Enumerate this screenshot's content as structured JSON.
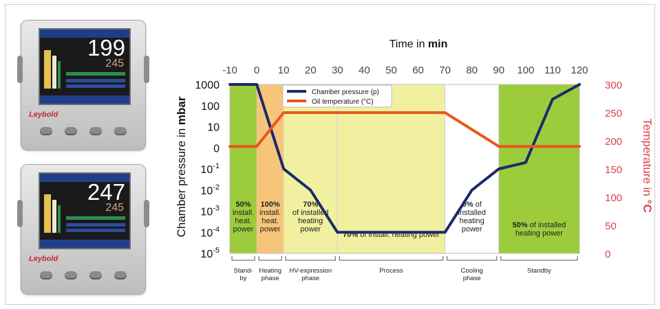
{
  "devices": [
    {
      "reading": "199",
      "setpoint": "245",
      "brand": "Leybold"
    },
    {
      "reading": "247",
      "setpoint": "245",
      "brand": "Leybold"
    }
  ],
  "chart_data": {
    "type": "line",
    "title": "Time in min",
    "x_axis": {
      "label_prefix": "Time in ",
      "label_bold": "min",
      "ticks": [
        -10,
        0,
        10,
        20,
        30,
        40,
        50,
        60,
        70,
        80,
        90,
        100,
        110,
        120
      ],
      "range": [
        -10,
        120
      ]
    },
    "y_axis_left": {
      "label_prefix": "Chamber pressure in ",
      "label_bold": "mbar",
      "scale": "log",
      "ticks": [
        {
          "base": "1000",
          "exp": ""
        },
        {
          "base": "100",
          "exp": ""
        },
        {
          "base": "10",
          "exp": ""
        },
        {
          "base": "0",
          "exp": ""
        },
        {
          "base": "10",
          "exp": "-1"
        },
        {
          "base": "10",
          "exp": "-2"
        },
        {
          "base": "10",
          "exp": "-3"
        },
        {
          "base": "10",
          "exp": "-4"
        },
        {
          "base": "10",
          "exp": "-5"
        }
      ]
    },
    "y_axis_right": {
      "label_prefix": "Temperature in ",
      "label_bold": "°C",
      "ticks": [
        300,
        250,
        200,
        150,
        100,
        50,
        0
      ],
      "range": [
        0,
        300
      ]
    },
    "legend": {
      "position": "top-center",
      "entries": [
        {
          "name": "Chamber pressure (p)",
          "color": "#1b2a6b"
        },
        {
          "name": "Oil temperature (°C)",
          "color": "#e8581b"
        }
      ]
    },
    "series": [
      {
        "name": "Chamber pressure (p)",
        "axis": "left",
        "color": "#1b2a6b",
        "x": [
          -10,
          -10,
          0,
          10,
          20,
          30,
          70,
          80,
          90,
          100,
          110,
          120
        ],
        "y": [
          1000,
          1000,
          1000,
          0.1,
          0.01,
          0.0001,
          0.0001,
          0.01,
          0.1,
          0.2,
          200,
          1000
        ]
      },
      {
        "name": "Oil temperature (°C)",
        "axis": "right",
        "color": "#e8581b",
        "x": [
          -10,
          0,
          10,
          30,
          70,
          90,
          120
        ],
        "y": [
          190,
          190,
          250,
          250,
          250,
          190,
          190
        ]
      }
    ],
    "phase_bands": [
      {
        "x0": -10,
        "x1": 0,
        "color": "#9ccc3c",
        "label_bold": "50%",
        "label_rest": "install.|heat.|power",
        "phase": "Stand-|by"
      },
      {
        "x0": 0,
        "x1": 10,
        "color": "#f7c57a",
        "label_bold": "100%",
        "label_rest": "install.|heat.|power",
        "phase": "Heating|phase"
      },
      {
        "x0": 10,
        "x1": 30,
        "color": "#f1f0a0",
        "label_bold": "70%",
        "label_rest": "of installed|heating|power",
        "phase": "HV-expression|phase"
      },
      {
        "x0": 30,
        "x1": 70,
        "color": "#f1f0a0",
        "label_bold": "70%",
        "label_rest": " of install. heating power",
        "phase": "Process"
      },
      {
        "x0": 70,
        "x1": 90,
        "color": "#ffffff",
        "label_bold": "0%",
        "label_rest": " of|installed|heating|power",
        "phase": "Cooling|phase"
      },
      {
        "x0": 90,
        "x1": 120,
        "color": "#9ccc3c",
        "label_bold": "50%",
        "label_rest": " of installed|heating power",
        "phase": "Standby"
      }
    ],
    "grid": false
  }
}
